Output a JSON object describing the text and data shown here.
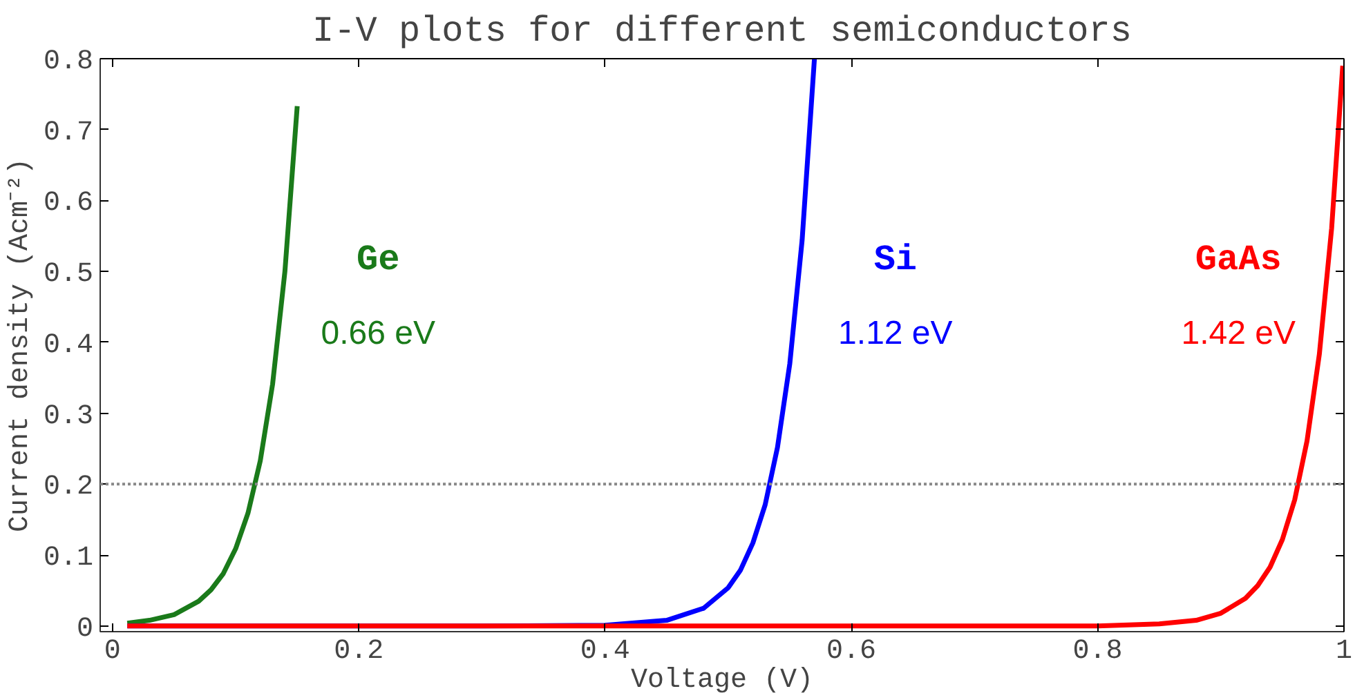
{
  "chart_data": {
    "type": "line",
    "title": "I-V plots for different semiconductors",
    "xlabel": "Voltage (V)",
    "ylabel": "Current density (Acm⁻²)",
    "xlim": [
      -0.01,
      1
    ],
    "ylim": [
      -0.008,
      0.8
    ],
    "xticks": [
      0,
      0.2,
      0.4,
      0.6,
      0.8,
      1
    ],
    "yticks": [
      0,
      0.1,
      0.2,
      0.3,
      0.4,
      0.5,
      0.6,
      0.7,
      0.8
    ],
    "grid": false,
    "marker": "none",
    "line_style": "solid",
    "series": [
      {
        "name": "Ge",
        "color": "#1a7a1a",
        "x": [
          0.012,
          0.03,
          0.05,
          0.07,
          0.08,
          0.09,
          0.1,
          0.11,
          0.12,
          0.13,
          0.14,
          0.15
        ],
        "values": [
          0.004,
          0.008,
          0.016,
          0.035,
          0.051,
          0.074,
          0.109,
          0.159,
          0.233,
          0.341,
          0.5,
          0.733
        ]
      },
      {
        "name": "Si",
        "color": "#0000ff",
        "x": [
          0.012,
          0.3,
          0.4,
          0.45,
          0.48,
          0.5,
          0.51,
          0.52,
          0.53,
          0.54,
          0.55,
          0.56,
          0.57
        ],
        "values": [
          0,
          0,
          0.001,
          0.008,
          0.025,
          0.054,
          0.079,
          0.117,
          0.171,
          0.252,
          0.37,
          0.544,
          0.8
        ]
      },
      {
        "name": "GaAs",
        "color": "#ff0000",
        "x": [
          0.012,
          0.5,
          0.8,
          0.85,
          0.88,
          0.9,
          0.92,
          0.93,
          0.94,
          0.95,
          0.96,
          0.97,
          0.98,
          0.99,
          0.999
        ],
        "values": [
          0,
          0,
          0,
          0.003,
          0.008,
          0.018,
          0.039,
          0.057,
          0.083,
          0.122,
          0.178,
          0.261,
          0.383,
          0.561,
          0.79
        ]
      }
    ],
    "ref_lines": [
      {
        "axis": "y",
        "value": 0.2,
        "color": "#888888",
        "line_style": "dotted"
      }
    ],
    "annotations": [
      "0.66 eV",
      "1.12 eV",
      "1.42 eV"
    ]
  }
}
